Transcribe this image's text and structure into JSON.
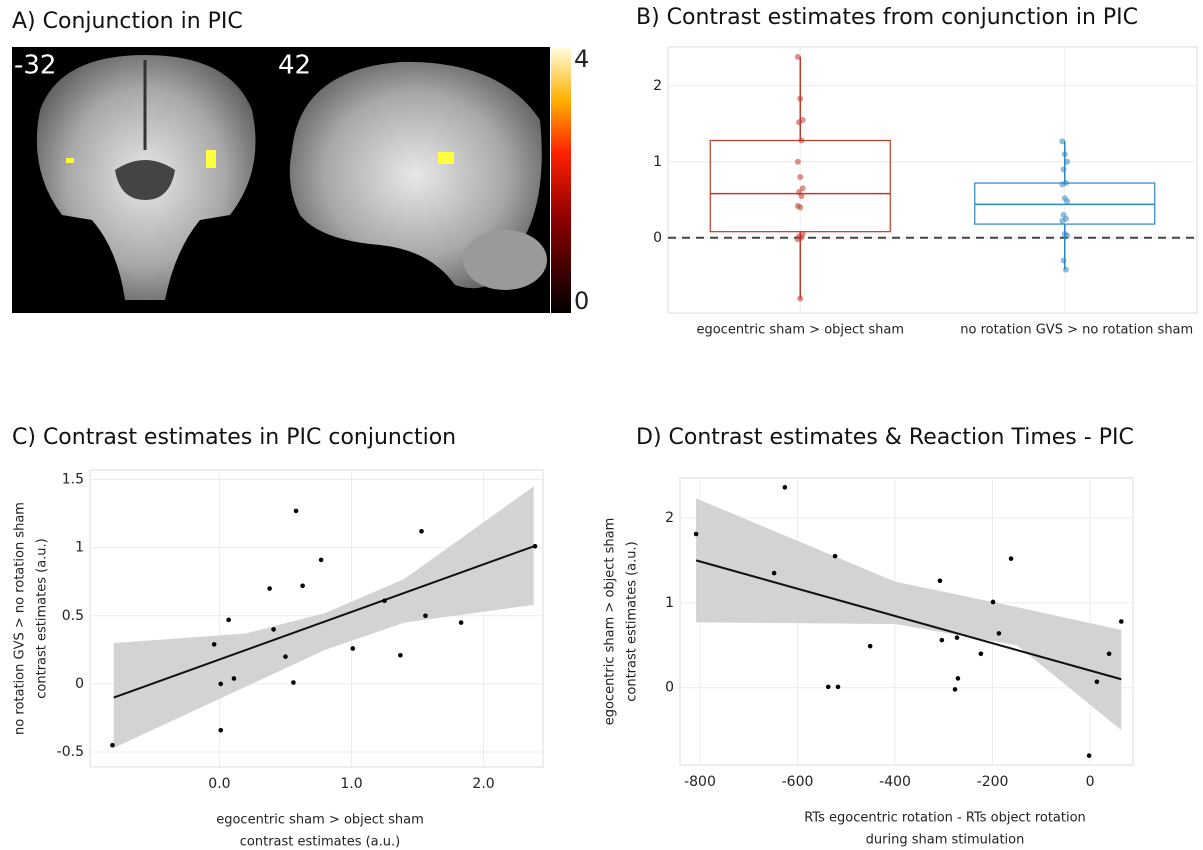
{
  "chart_data": [
    {
      "type": "brain",
      "title": "A) Conjunction in PIC",
      "slice_labels": [
        "-32",
        "42"
      ],
      "colorbar_lim": [
        0,
        4
      ],
      "colorbar_ticks": [
        0,
        4
      ]
    },
    {
      "type": "box",
      "title": "B) Contrast estimates from conjunction in PIC",
      "categories": [
        "egocentric sham > object sham",
        "no rotation GVS > no rotation sham"
      ],
      "ylim": [
        -0.99,
        2.51
      ],
      "yticks": [
        0,
        1,
        2
      ],
      "reference_line": 0,
      "grid": true,
      "series": [
        {
          "color": "#c0392b",
          "min": -0.8,
          "q1": 0.08,
          "median": 0.58,
          "q3": 1.28,
          "max": 2.38,
          "points": [
            2.38,
            1.83,
            1.55,
            1.52,
            1.28,
            1.0,
            0.8,
            0.65,
            0.6,
            0.55,
            0.42,
            0.4,
            0.05,
            0.02,
            0.0,
            -0.02,
            -0.8
          ]
        },
        {
          "color": "#2e86c1",
          "min": -0.42,
          "q1": 0.18,
          "median": 0.44,
          "q3": 0.72,
          "max": 1.27,
          "points": [
            1.27,
            1.1,
            1.0,
            0.9,
            0.72,
            0.7,
            0.52,
            0.48,
            0.3,
            0.25,
            0.22,
            0.05,
            0.03,
            -0.3,
            -0.42
          ]
        }
      ]
    },
    {
      "type": "scatter",
      "title": "C) Contrast estimates in PIC conjunction",
      "xlabel": [
        "egocentric sham > object sham",
        "contrast estimates (a.u.)"
      ],
      "ylabel": [
        "no rotation GVS > no rotation sham",
        "contrast estimates (a.u.)"
      ],
      "xlim": [
        -0.98,
        2.45
      ],
      "ylim": [
        -0.61,
        1.57
      ],
      "xticks": [
        {
          "value": 0,
          "label": "0.0"
        },
        {
          "value": 1,
          "label": "1.0"
        },
        {
          "value": 2,
          "label": "2.0"
        }
      ],
      "yticks": [
        -0.5,
        0,
        0.5,
        1,
        1.5
      ],
      "grid": true,
      "point_color": "#000000",
      "band_color": "#d3d3d3",
      "points": {
        "x": [
          -0.81,
          -0.04,
          0.07,
          0.01,
          0.11,
          0.01,
          0.38,
          0.41,
          0.5,
          0.56,
          0.58,
          0.63,
          0.77,
          1.01,
          1.25,
          1.37,
          1.53,
          1.56,
          1.83,
          2.39
        ],
        "y": [
          -0.45,
          0.29,
          0.47,
          0.0,
          0.04,
          -0.34,
          0.7,
          0.4,
          0.2,
          0.01,
          1.27,
          0.72,
          0.91,
          0.26,
          0.61,
          0.21,
          1.12,
          0.5,
          0.45,
          1.01
        ]
      },
      "fit": {
        "x": [
          -0.8,
          2.38
        ],
        "y": [
          -0.1,
          1.01
        ]
      },
      "band": {
        "x": [
          -0.8,
          0.2,
          0.8,
          1.4,
          2.38
        ],
        "lower": [
          -0.47,
          -0.02,
          0.25,
          0.45,
          0.58
        ],
        "upper": [
          0.3,
          0.37,
          0.52,
          0.77,
          1.45
        ]
      }
    },
    {
      "type": "scatter",
      "title": "D) Contrast estimates & Reaction Times - PIC",
      "xlabel": [
        "RTs egocentric rotation - RTs object rotation",
        "during sham stimulation"
      ],
      "ylabel": [
        "egocentric sham > object sham",
        "contrast estimates (a.u.)"
      ],
      "xlim": [
        -841,
        88
      ],
      "ylim": [
        -0.91,
        2.47
      ],
      "xticks": [
        -800,
        -600,
        -400,
        -200,
        0
      ],
      "yticks": [
        0,
        1,
        2
      ],
      "grid": true,
      "point_color": "#000000",
      "band_color": "#d3d3d3",
      "points": {
        "x": [
          -808,
          -626,
          -648,
          -523,
          -537,
          -517,
          -451,
          -308,
          -304,
          -277,
          -273,
          -271,
          -224,
          -199,
          -187,
          -162,
          -2,
          14,
          39,
          64
        ],
        "y": [
          1.81,
          2.36,
          1.35,
          1.55,
          0.01,
          0.01,
          0.49,
          1.26,
          0.56,
          -0.02,
          0.59,
          0.11,
          0.4,
          1.01,
          0.64,
          1.52,
          -0.8,
          0.07,
          0.4,
          0.78
        ]
      },
      "fit": {
        "x": [
          -808,
          64
        ],
        "y": [
          1.5,
          0.1
        ]
      },
      "band": {
        "x": [
          -808,
          -400,
          -150,
          64
        ],
        "lower": [
          0.77,
          0.75,
          0.5,
          -0.5
        ],
        "upper": [
          2.23,
          1.25,
          0.95,
          0.68
        ]
      }
    }
  ]
}
